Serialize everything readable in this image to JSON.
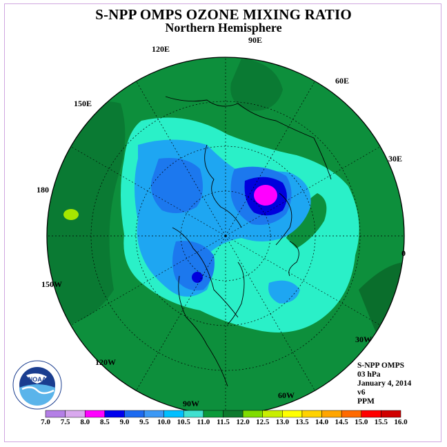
{
  "title": "S-NPP OMPS OZONE MIXING RATIO",
  "subtitle": "Northern Hemisphere",
  "longitude_labels": [
    {
      "id": "lon-90e",
      "text": "90E"
    },
    {
      "id": "lon-60e",
      "text": "60E"
    },
    {
      "id": "lon-30e",
      "text": "30E"
    },
    {
      "id": "lon-0",
      "text": "0"
    },
    {
      "id": "lon-30w",
      "text": "30W"
    },
    {
      "id": "lon-60w",
      "text": "60W"
    },
    {
      "id": "lon-90w",
      "text": "90W"
    },
    {
      "id": "lon-120w",
      "text": "120W"
    },
    {
      "id": "lon-150w",
      "text": "150W"
    },
    {
      "id": "lon-180",
      "text": "180"
    },
    {
      "id": "lon-150e",
      "text": "150E"
    },
    {
      "id": "lon-120e",
      "text": "120E"
    }
  ],
  "info": {
    "instrument": "S-NPP OMPS",
    "level": "03 hPa",
    "date": "January 4, 2014",
    "version": "v6",
    "unit": "PPM"
  },
  "logo": {
    "text": "NOAA",
    "ring_text": "NATIONAL OCEANIC AND ATMOSPHERIC ADMINISTRATION · U.S. DEPARTMENT OF COMMERCE"
  },
  "colorbar": {
    "ticks": [
      "7.0",
      "7.5",
      "8.0",
      "8.5",
      "9.0",
      "9.5",
      "10.0",
      "10.5",
      "11.0",
      "11.5",
      "12.0",
      "12.5",
      "13.0",
      "13.5",
      "14.0",
      "14.5",
      "15.0",
      "15.5",
      "16.0"
    ],
    "colors": [
      "#b47fe6",
      "#d9a8ee",
      "#ff00ff",
      "#0000ee",
      "#1c6af0",
      "#3b98f5",
      "#00bfff",
      "#40e0d0",
      "#0a9a3a",
      "#0d7a2e",
      "#7fdc00",
      "#c8ee00",
      "#ffff00",
      "#ffd200",
      "#ffa500",
      "#ff6a00",
      "#ff0000",
      "#d00000"
    ]
  },
  "colors": {
    "base_green": "#0d8f3c",
    "dark_green": "#0a6e2c",
    "aqua": "#2af0c8",
    "light_blue": "#1ea6f2",
    "blue": "#1c78ee",
    "deep_blue": "#0000dd",
    "magenta": "#ff00ff",
    "lime": "#a6e600"
  }
}
